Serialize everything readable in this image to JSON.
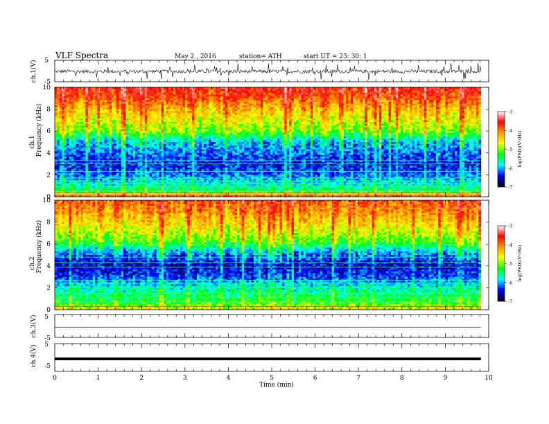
{
  "header": {
    "title": "VLF  Spectra",
    "date": "May 2  , 2016",
    "station": "station= ATH",
    "start": "start  UT  =    23: 30: 1"
  },
  "colorbar": {
    "label": "log(PSD)(V²/Hz)",
    "ticks": [
      "-3",
      "-4",
      "-5",
      "-6",
      "-7"
    ],
    "colors": [
      "#ffffff",
      "#ff0000",
      "#ff9900",
      "#ffff00",
      "#00ff00",
      "#00ffff",
      "#0000ff",
      "#000000"
    ]
  },
  "chart_data": [
    {
      "type": "line",
      "id": "ch1-waveform",
      "ylabel": "ch.1(V)",
      "yticks": [
        "5",
        "-5"
      ],
      "ylim": [
        -5,
        5
      ],
      "xlim": [
        0,
        10
      ],
      "data_end_min": 9.82,
      "baseline_v": -0.2,
      "description_points": {
        "x": [
          0,
          1,
          2,
          3,
          4,
          5,
          6,
          7,
          8,
          9,
          9.82
        ],
        "y": [
          0.3,
          -0.2,
          0.4,
          -0.3,
          0.2,
          -0.4,
          0.3,
          -0.2,
          0.1,
          -0.3,
          0.0
        ]
      }
    },
    {
      "type": "heatmap",
      "id": "ch1-spectrogram",
      "ylabel_channel": "ch.1",
      "ylabel": "Frequency  (kHz)",
      "yticks": [
        "10",
        "8",
        "6",
        "4",
        "2",
        "0"
      ],
      "ylim": [
        0,
        10
      ],
      "xlim": [
        0,
        10
      ],
      "data_end_min": 9.82,
      "zlim": [
        -7,
        -3
      ],
      "freq_profile_khz": [
        0,
        0.5,
        1,
        2,
        3,
        4,
        5,
        5.5,
        6,
        7,
        8,
        9,
        10
      ],
      "freq_profile_logpsd": [
        -4.3,
        -5.6,
        -5.9,
        -6.3,
        -6.5,
        -6.3,
        -6.1,
        -5.7,
        -5.3,
        -5.0,
        -4.7,
        -4.3,
        -4.0
      ],
      "band_lines_khz": [
        0.15,
        0.35,
        0.6,
        0.95,
        1.2,
        1.45,
        1.7,
        2.3,
        3.0,
        3.3
      ]
    },
    {
      "type": "heatmap",
      "id": "ch2-spectrogram",
      "ylabel_channel": "ch.2",
      "ylabel": "Frequency  (kHz)",
      "yticks": [
        "10",
        "8",
        "6",
        "4",
        "2",
        "0"
      ],
      "ylim": [
        0,
        10
      ],
      "xlim": [
        0,
        10
      ],
      "data_end_min": 9.82,
      "zlim": [
        -7,
        -3
      ],
      "freq_profile_khz": [
        0,
        0.5,
        1,
        2,
        3,
        4,
        5,
        5.5,
        6,
        7,
        8,
        9,
        10
      ],
      "freq_profile_logpsd": [
        -5.0,
        -5.4,
        -5.6,
        -5.9,
        -6.4,
        -6.6,
        -6.3,
        -6.0,
        -5.5,
        -5.1,
        -4.8,
        -4.5,
        -4.3
      ],
      "band_lines_khz": [
        0.3,
        0.7,
        1.1,
        1.5,
        2.0,
        2.4,
        2.7,
        3.9,
        4.3,
        4.8
      ]
    },
    {
      "type": "line",
      "id": "ch3-waveform",
      "ylabel": "ch.3(V)",
      "yticks": [
        "5",
        "-5"
      ],
      "ylim": [
        -5,
        5
      ],
      "xlim": [
        0,
        10
      ],
      "data_end_min": 9.82,
      "baseline_v": -0.5
    },
    {
      "type": "line",
      "id": "ch4-waveform",
      "ylabel": "ch.4(V)",
      "yticks": [
        "5",
        "-5"
      ],
      "ylim": [
        -5,
        5
      ],
      "xlim": [
        0,
        10
      ],
      "data_end_min": 9.82,
      "baseline_v": -0.5
    }
  ],
  "xaxis": {
    "label": "Time  (min)",
    "ticks": [
      "0",
      "1",
      "2",
      "3",
      "4",
      "5",
      "6",
      "7",
      "8",
      "9",
      "10"
    ],
    "xlim": [
      0,
      10
    ]
  }
}
